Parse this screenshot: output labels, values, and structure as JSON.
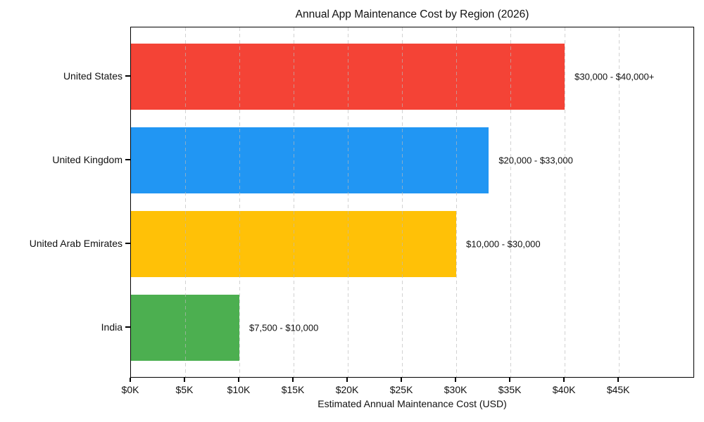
{
  "chart_data": {
    "type": "bar",
    "orientation": "horizontal",
    "title": "Annual App Maintenance Cost by Region (2026)",
    "xlabel": "Estimated Annual Maintenance Cost (USD)",
    "categories": [
      "United States",
      "United Kingdom",
      "United Arab Emirates",
      "India"
    ],
    "values_usd_k": [
      40,
      33,
      30,
      10
    ],
    "bar_annotations": [
      "$30,000 - $40,000+",
      "$20,000 - $33,000",
      "$10,000 - $30,000",
      "$7,500 - $10,000"
    ],
    "bar_colors": [
      "#F44336",
      "#2196F3",
      "#FFC107",
      "#4CAF50"
    ],
    "x_tick_values_k": [
      0,
      5,
      10,
      15,
      20,
      25,
      30,
      35,
      40,
      45
    ],
    "x_tick_labels": [
      "$0K",
      "$5K",
      "$10K",
      "$15K",
      "$20K",
      "$25K",
      "$30K",
      "$35K",
      "$40K",
      "$45K"
    ],
    "xlim_k": [
      0,
      52
    ],
    "grid": "vertical-dashed",
    "legend": "none"
  }
}
